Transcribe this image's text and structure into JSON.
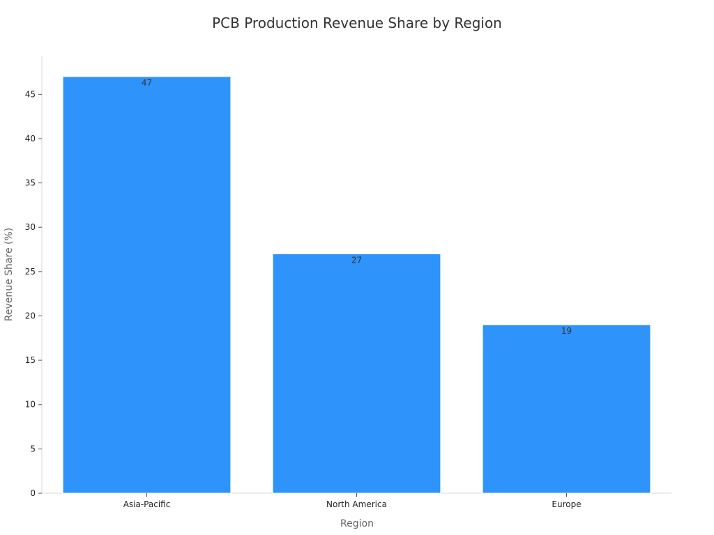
{
  "chart_data": {
    "type": "bar",
    "title": "PCB Production Revenue Share by Region",
    "xlabel": "Region",
    "ylabel": "Revenue Share (%)",
    "categories": [
      "Asia-Pacific",
      "North America",
      "Europe"
    ],
    "values": [
      47,
      27,
      19
    ],
    "ylim": [
      0,
      49.35
    ],
    "yticks": [
      0,
      5,
      10,
      15,
      20,
      25,
      30,
      35,
      40,
      45
    ],
    "grid": false,
    "legend": "none",
    "bar_color": "#2e93fa"
  }
}
